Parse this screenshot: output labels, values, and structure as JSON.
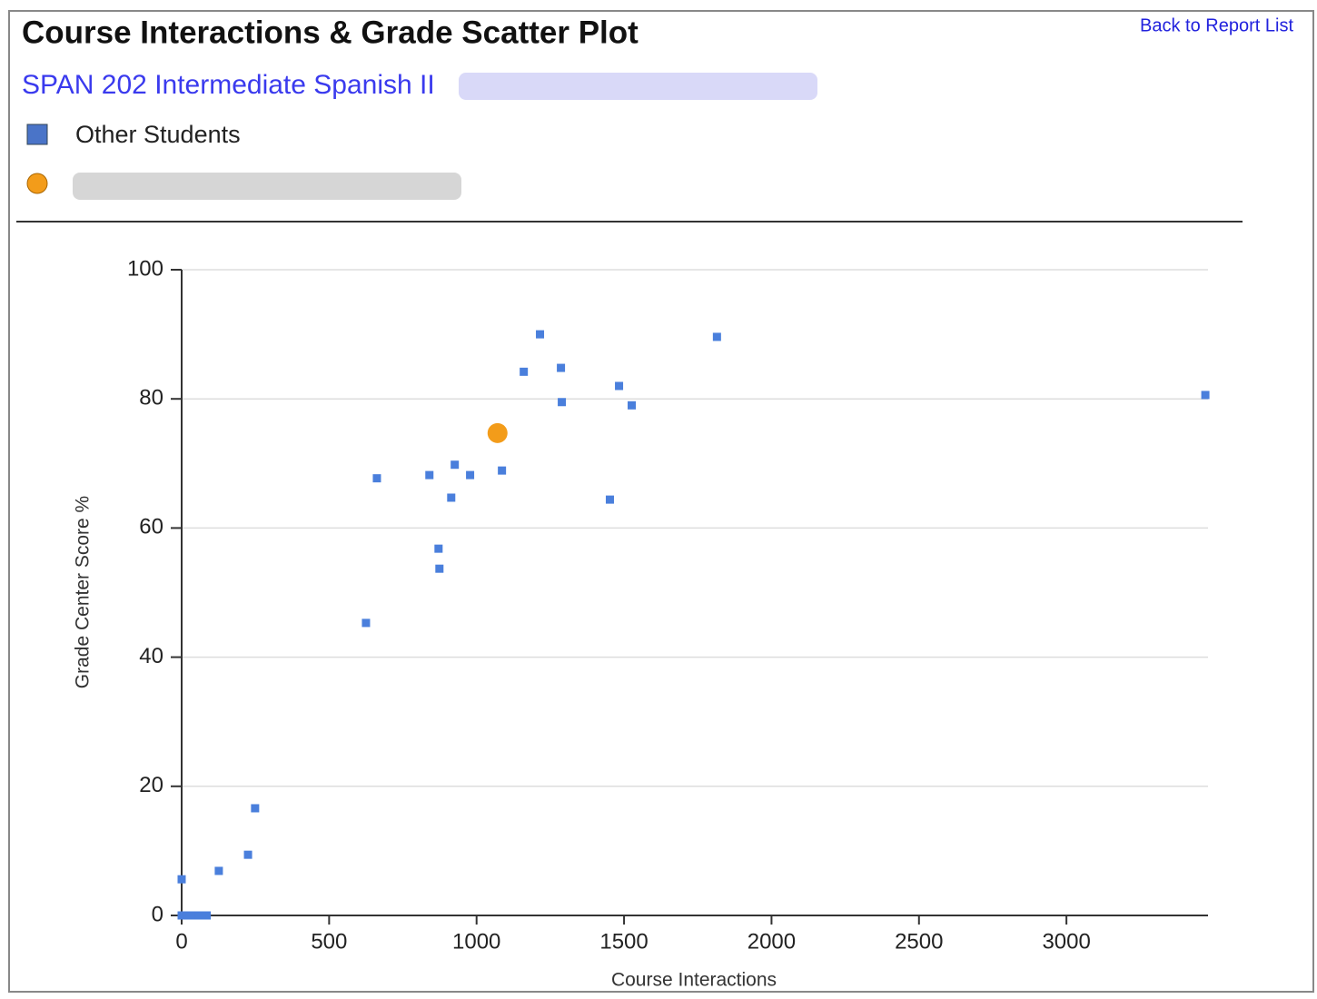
{
  "header": {
    "title": "Course Interactions & Grade Scatter Plot",
    "back_link": "Back to Report List",
    "course": "SPAN 202 Intermediate Spanish II"
  },
  "chart_data": {
    "type": "scatter",
    "xlabel": "Course Interactions",
    "ylabel": "Grade Center Score %",
    "xlim": [
      0,
      3480
    ],
    "xticks": [
      0,
      500,
      1000,
      1500,
      2000,
      2500,
      3000
    ],
    "ylim": [
      0,
      100
    ],
    "yticks": [
      0,
      20,
      40,
      60,
      80,
      100
    ],
    "grid": true,
    "series": [
      {
        "name": "Other Students",
        "color": "#4a7fdc",
        "marker": "square",
        "x": [
          0,
          0,
          20,
          40,
          60,
          85,
          126,
          225,
          249,
          625,
          662,
          840,
          871,
          874,
          926,
          914,
          978,
          1086,
          1160,
          1215,
          1286,
          1289,
          1452,
          1483,
          1526,
          1815,
          3471
        ],
        "values": [
          5.6,
          0,
          0,
          0,
          0,
          0,
          6.9,
          9.4,
          16.6,
          45.3,
          67.7,
          68.2,
          56.8,
          53.7,
          69.8,
          64.7,
          68.2,
          68.9,
          84.2,
          90.0,
          84.8,
          79.5,
          64.4,
          82.0,
          79.0,
          89.6,
          80.6
        ]
      },
      {
        "color": "#f39c1a",
        "marker": "circle",
        "x": [
          1071
        ],
        "values": [
          74.7
        ]
      }
    ]
  }
}
